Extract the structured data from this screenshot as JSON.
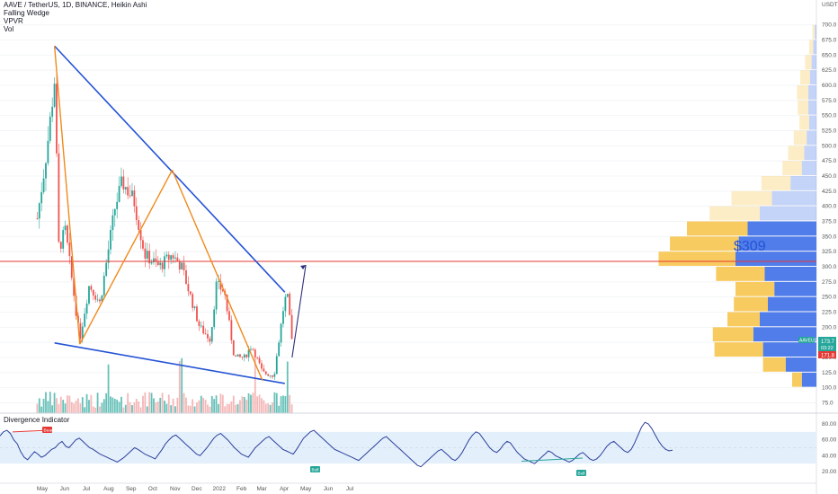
{
  "header": {
    "symbol_line": "AAVE / TetherUS, 1D, BINANCE, Heikin Ashi",
    "indicators": [
      "Falling Wedge",
      "VPVR",
      "Vol"
    ]
  },
  "divergence_panel": {
    "title": "Divergence Indicator"
  },
  "annotations": {
    "target_label": "$309",
    "bear_tag": "Bear",
    "bull_tags": [
      "Bull",
      "Bull"
    ]
  },
  "price_badges": {
    "symbol": "AAVEUSDT",
    "last": "173.7",
    "countdown": "03:22",
    "low": "171.8"
  },
  "colors": {
    "wedge": "#2553d6",
    "pattern": "#f08a1c",
    "target_line": "#e53935",
    "up_candle": "#26a69a",
    "down_candle": "#ef5350",
    "up_volume": "#26a69a",
    "down_volume": "#ef9a9a",
    "vp_up": "#f7c244",
    "vp_down": "#3d6fe8",
    "rsi_line": "#2e3f9b",
    "rsi_band": "#e3f0fb",
    "badge_green": "#26a69a",
    "badge_red": "#e53935"
  },
  "chart_data": {
    "type": "candlestick",
    "title": "AAVE / TetherUS, 1D, BINANCE, Heikin Ashi",
    "currency": "USDT",
    "y_ticks": [
      "700.0",
      "675.0",
      "650.0",
      "625.0",
      "600.0",
      "575.0",
      "550.0",
      "525.0",
      "500.0",
      "475.0",
      "450.0",
      "425.0",
      "400.0",
      "375.0",
      "350.0",
      "325.0",
      "300.0",
      "275.0",
      "250.0",
      "225.0",
      "200.0",
      "175.0",
      "150.0",
      "125.0",
      "100.0",
      "75.0"
    ],
    "x_ticks": [
      "May",
      "Jun",
      "Jul",
      "Aug",
      "Sep",
      "Oct",
      "Nov",
      "Dec",
      "2022",
      "Feb",
      "Mar",
      "Apr",
      "May",
      "Jun",
      "Jul"
    ],
    "wedge_upper": [
      {
        "date": "2021-05-18",
        "price": 665
      },
      {
        "date": "2022-04-02",
        "price": 258
      }
    ],
    "wedge_lower": [
      {
        "date": "2021-05-18",
        "price": 174
      },
      {
        "date": "2022-04-02",
        "price": 107
      }
    ],
    "zigzag": [
      {
        "date": "2021-05-18",
        "price": 665
      },
      {
        "date": "2021-06-22",
        "price": 172
      },
      {
        "date": "2021-10-28",
        "price": 460
      },
      {
        "date": "2022-03-02",
        "price": 112
      }
    ],
    "target_level": 309,
    "projection": [
      {
        "date": "2022-04-12",
        "price": 150
      },
      {
        "date": "2022-05-01",
        "price": 303
      }
    ],
    "volume_profile_levels": [
      "687.5",
      "662.5",
      "637.5",
      "612.5",
      "587.5",
      "562.5",
      "537.5",
      "512.5",
      "487.5",
      "462.5",
      "437.5",
      "412.5",
      "387.5",
      "362.5",
      "337.5",
      "312.5",
      "287.5",
      "262.5",
      "237.5",
      "212.5",
      "187.5",
      "162.5",
      "137.5",
      "112.5"
    ],
    "volume_profile_up": [
      3,
      5,
      8,
      12,
      14,
      13,
      12,
      16,
      20,
      24,
      36,
      50,
      62,
      75,
      85,
      95,
      60,
      48,
      42,
      40,
      50,
      60,
      28,
      12
    ],
    "volume_profile_down": [
      2,
      4,
      6,
      8,
      10,
      10,
      9,
      12,
      15,
      18,
      32,
      55,
      70,
      85,
      96,
      100,
      64,
      52,
      60,
      70,
      78,
      66,
      38,
      18
    ],
    "rsi_ticks": [
      "80.00",
      "60.00",
      "40.00",
      "20.00"
    ],
    "rsi_band": [
      30,
      70
    ],
    "rsi_points": [
      65,
      70,
      72,
      68,
      60,
      55,
      45,
      38,
      35,
      40,
      45,
      42,
      38,
      40,
      44,
      48,
      50,
      55,
      58,
      52,
      50,
      55,
      60,
      62,
      58,
      54,
      50,
      48,
      45,
      42,
      40,
      38,
      36,
      34,
      32,
      35,
      38,
      42,
      46,
      50,
      48,
      45,
      42,
      40,
      38,
      36,
      42,
      48,
      55,
      60,
      64,
      66,
      62,
      58,
      54,
      50,
      46,
      42,
      40,
      45,
      50,
      56,
      62,
      66,
      68,
      64,
      60,
      55,
      50,
      46,
      42,
      40,
      38,
      44,
      50,
      54,
      58,
      62,
      64,
      60,
      56,
      52,
      48,
      46,
      44,
      42,
      48,
      55,
      62,
      66,
      70,
      72,
      68,
      64,
      60,
      56,
      52,
      48,
      46,
      44,
      42,
      40,
      38,
      36,
      34,
      38,
      42,
      46,
      50,
      54,
      58,
      62,
      64,
      60,
      56,
      52,
      48,
      44,
      40,
      36,
      32,
      28,
      26,
      30,
      34,
      38,
      42,
      46,
      48,
      44,
      40,
      36,
      34,
      38,
      44,
      52,
      60,
      66,
      70,
      68,
      62,
      56,
      50,
      46,
      44,
      48,
      54,
      58,
      56,
      50,
      44,
      40,
      36,
      34,
      32,
      30,
      34,
      38,
      42,
      46,
      44,
      40,
      38,
      36,
      34,
      32,
      34,
      38,
      42,
      44,
      40,
      36,
      34,
      36,
      40,
      46,
      52,
      56,
      58,
      54,
      50,
      46,
      44,
      48,
      56,
      66,
      76,
      82,
      80,
      74,
      66,
      58,
      52,
      48,
      46,
      47
    ]
  }
}
